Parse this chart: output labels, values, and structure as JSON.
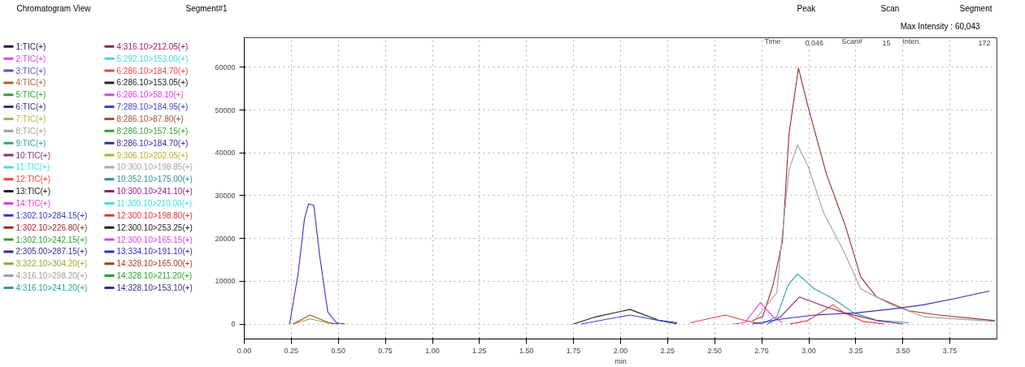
{
  "chart_data": {
    "type": "line",
    "title": "Chromatogram View",
    "subtitle": "Segment#1",
    "xlabel": "min",
    "annotations": [
      "Peak",
      "Scan",
      "Segment",
      "Max Intensity : 60,043",
      "Time",
      "0.046",
      "Scan#",
      "15",
      "Inten.",
      "172"
    ],
    "xlim": [
      0,
      4.0
    ],
    "ylim": [
      -3500,
      66900
    ],
    "xticks": [
      {
        "value": 0,
        "label": "0.00"
      },
      {
        "value": 0.25,
        "label": "0.25"
      },
      {
        "value": 0.5,
        "label": "0.50"
      },
      {
        "value": 0.75,
        "label": "0.75"
      },
      {
        "value": 1.0,
        "label": "1.00"
      },
      {
        "value": 1.25,
        "label": "1.25"
      },
      {
        "value": 1.5,
        "label": "1.50"
      },
      {
        "value": 1.75,
        "label": "1.75"
      },
      {
        "value": 2.0,
        "label": "2.00"
      },
      {
        "value": 2.25,
        "label": "2.25"
      },
      {
        "value": 2.5,
        "label": "2.50"
      },
      {
        "value": 2.75,
        "label": "2.75"
      },
      {
        "value": 3.0,
        "label": "3.00"
      },
      {
        "value": 3.25,
        "label": "3.25"
      },
      {
        "value": 3.5,
        "label": "3.50"
      },
      {
        "value": 3.75,
        "label": "3.75"
      }
    ],
    "yticks": [
      0,
      10000,
      20000,
      30000,
      40000,
      50000,
      60000
    ],
    "grid": true,
    "legend": "left",
    "line_style": "solid",
    "series": [
      {
        "name": "1:TIC(+)",
        "color": "#2a1040"
      },
      {
        "name": "2:TIC(+)",
        "color": "#e040e0"
      },
      {
        "name": "3:TIC(+)",
        "color": "#5050d0"
      },
      {
        "name": "4:TIC(+)",
        "color": "#b06030"
      },
      {
        "name": "5:TIC(+)",
        "color": "#30a030"
      },
      {
        "name": "6:TIC(+)",
        "color": "#303080"
      },
      {
        "name": "7:TIC(+)",
        "color": "#b0b040"
      },
      {
        "name": "8:TIC(+)",
        "color": "#a0a0a0"
      },
      {
        "name": "9:TIC(+)",
        "color": "#30a0a0"
      },
      {
        "name": "10:TIC(+)",
        "color": "#803080"
      },
      {
        "name": "11:TIC(+)",
        "color": "#40e0e0"
      },
      {
        "name": "12:TIC(+)",
        "color": "#f04040"
      },
      {
        "name": "13:TIC(+)",
        "color": "#202020"
      },
      {
        "name": "14:TIC(+)",
        "color": "#e040e0"
      },
      {
        "name": "1:302.10>284.15(+)",
        "color": "#3535c8",
        "x": [
          0.241,
          0.286,
          0.32,
          0.342,
          0.37,
          0.4,
          0.444,
          0.49,
          0.535
        ],
        "values": [
          0,
          11700,
          24600,
          28100,
          27700,
          16200,
          2800,
          300,
          0
        ]
      },
      {
        "name": "1:302.10>226.80(+)",
        "color": "#a02828",
        "x": [
          2.7,
          2.755,
          2.81,
          2.86,
          2.895,
          2.945,
          2.995,
          3.094,
          3.194,
          3.276,
          3.36,
          3.53,
          3.69,
          3.99
        ],
        "values": [
          800,
          1700,
          9100,
          19300,
          44500,
          59800,
          51000,
          35000,
          23000,
          11000,
          6300,
          3100,
          2100,
          800
        ]
      },
      {
        "name": "1:302.10>242.15(+)",
        "color": "#30a030"
      },
      {
        "name": "2:305.00>287.15(+)",
        "color": "#303090"
      },
      {
        "name": "3:322.10>304.20(+)",
        "color": "#a0a030",
        "x": [
          0.26,
          0.35,
          0.45,
          0.5
        ],
        "values": [
          0,
          1200,
          200,
          0
        ]
      },
      {
        "name": "4:316.10>298.20(+)",
        "color": "#a0a0a0",
        "x": [
          2.7,
          2.83,
          2.86,
          2.895,
          2.94,
          2.995,
          3.08,
          3.19,
          3.276,
          3.44,
          3.61,
          3.99
        ],
        "values": [
          300,
          7300,
          21200,
          36000,
          41900,
          37000,
          25900,
          16600,
          8200,
          4500,
          1700,
          600
        ]
      },
      {
        "name": "4:316.10>241.20(+)",
        "color": "#2f9a9a",
        "x": [
          2.75,
          2.83,
          2.89,
          2.94,
          3.03,
          3.13,
          3.24,
          3.36,
          3.53
        ],
        "values": [
          0,
          1700,
          9100,
          11700,
          8200,
          5900,
          2600,
          900,
          300
        ]
      },
      {
        "name": "4:316.10>212.05(+)",
        "color": "#902070",
        "x": [
          2.78,
          2.85,
          2.95,
          3.06,
          3.19,
          3.36,
          3.5
        ],
        "values": [
          0,
          1700,
          6300,
          4500,
          2600,
          800,
          0
        ]
      },
      {
        "name": "5:292.10>153.00(+)",
        "color": "#40d8e0"
      },
      {
        "name": "6:286.10>184.70(+)",
        "color": "#f04040",
        "x": [
          2.37,
          2.556,
          2.66,
          2.75
        ],
        "values": [
          300,
          2100,
          800,
          0
        ]
      },
      {
        "name": "6:286.10>153.05(+)",
        "color": "#202020",
        "x": [
          1.75,
          1.87,
          2.05,
          2.2,
          2.3
        ],
        "values": [
          0,
          1700,
          3400,
          900,
          300
        ]
      },
      {
        "name": "6:286.10>58.10(+)",
        "color": "#e040e0",
        "x": [
          2.6,
          2.66,
          2.743,
          2.81,
          2.86
        ],
        "values": [
          0,
          300,
          5000,
          1700,
          300
        ]
      },
      {
        "name": "7:289.10>184.95(+)",
        "color": "#4040d0",
        "x": [
          1.79,
          2.05,
          2.23,
          2.3
        ],
        "values": [
          0,
          2100,
          600,
          0
        ]
      },
      {
        "name": "8:286.10>87.80(+)",
        "color": "#a0522d",
        "x": [
          0.26,
          0.35,
          0.45,
          0.5
        ],
        "values": [
          0,
          2100,
          300,
          0
        ]
      },
      {
        "name": "8:286.10>157.15(+)",
        "color": "#30a030"
      },
      {
        "name": "8:286.10>184.70(+)",
        "color": "#303090"
      },
      {
        "name": "9:306.10>202.05(+)",
        "color": "#b0b030"
      },
      {
        "name": "10:300.10>198.85(+)",
        "color": "#a8a8a8"
      },
      {
        "name": "10:352.10>175.00(+)",
        "color": "#309090"
      },
      {
        "name": "10:300.10>241.10(+)",
        "color": "#902080"
      },
      {
        "name": "11:300.10>210.00(+)",
        "color": "#40e0e0"
      },
      {
        "name": "12:300.10>198.80(+)",
        "color": "#f03030",
        "x": [
          2.9,
          2.995,
          3.06,
          3.128,
          3.19,
          3.29,
          3.4
        ],
        "values": [
          0,
          800,
          2600,
          4500,
          2600,
          600,
          0
        ]
      },
      {
        "name": "12:300.10>253.25(+)",
        "color": "#202020"
      },
      {
        "name": "12:300.10>165.15(+)",
        "color": "#e040e0"
      },
      {
        "name": "13:334.10>191.10(+)",
        "color": "#3030c0",
        "x": [
          2.7,
          2.86,
          3.03,
          3.25,
          3.44,
          3.61,
          3.77,
          3.96
        ],
        "values": [
          0,
          1200,
          2100,
          2600,
          3500,
          4500,
          5900,
          7700
        ]
      },
      {
        "name": "14:328.10>165.00(+)",
        "color": "#a04020"
      },
      {
        "name": "14:328.10>211.20(+)",
        "color": "#30a030"
      },
      {
        "name": "14:328.10>153.10(+)",
        "color": "#303090"
      }
    ]
  }
}
